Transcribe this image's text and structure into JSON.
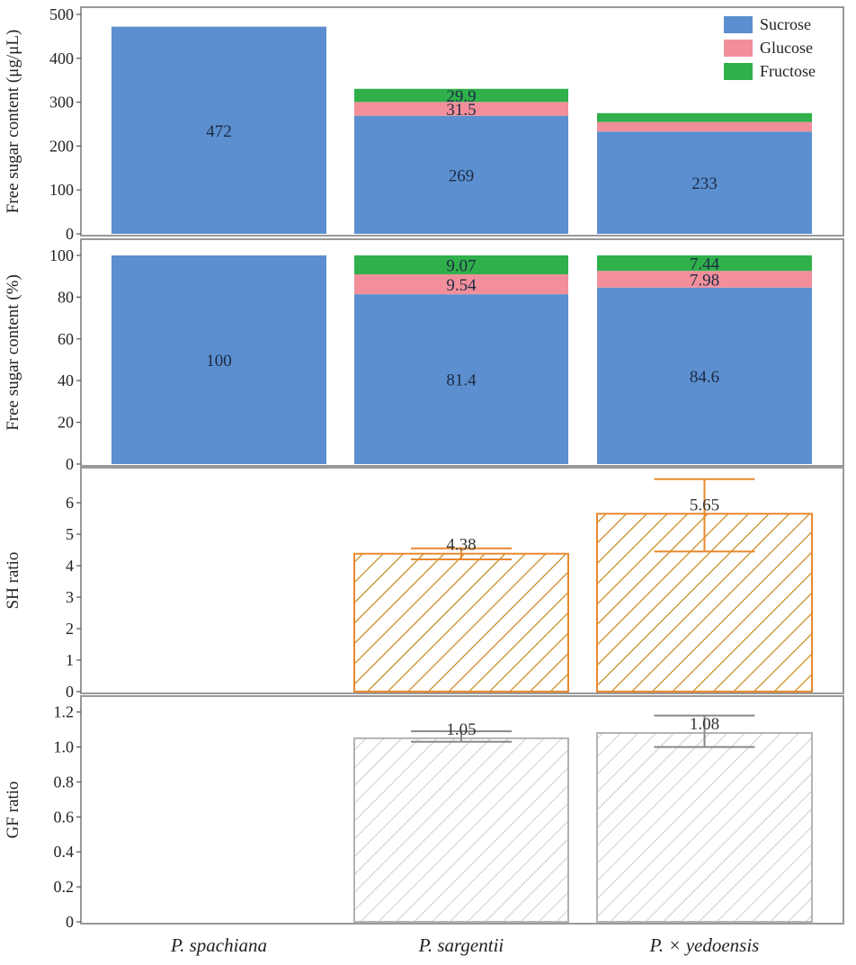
{
  "chart_data": [
    {
      "type": "bar",
      "stacked": true,
      "ylabel": "Free sugar content (μg/μL)",
      "ylim": [
        0,
        500
      ],
      "yticks": [
        0,
        100,
        200,
        300,
        400,
        500
      ],
      "categories": [
        "P. spachiana",
        "P. sargentii",
        "P. × yedoensis"
      ],
      "series": [
        {
          "name": "Sucrose",
          "color": "#5b8fcf",
          "values": [
            472,
            269,
            233
          ],
          "labels": [
            "472",
            "269",
            "233"
          ]
        },
        {
          "name": "Glucose",
          "color": "#f28f9b",
          "values": [
            0,
            31.5,
            22
          ],
          "labels": [
            "",
            "31.5",
            ""
          ]
        },
        {
          "name": "Fructose",
          "color": "#2fb04a",
          "values": [
            0,
            29.9,
            20
          ],
          "labels": [
            "",
            "29.9",
            ""
          ]
        }
      ],
      "legend": {
        "position": "top-right",
        "entries": [
          "Sucrose",
          "Glucose",
          "Fructose"
        ]
      }
    },
    {
      "type": "bar",
      "stacked": true,
      "ylabel": "Free sugar content (%)",
      "ylim": [
        0,
        100
      ],
      "yticks": [
        0,
        20,
        40,
        60,
        80,
        100
      ],
      "categories": [
        "P. spachiana",
        "P. sargentii",
        "P. × yedoensis"
      ],
      "series": [
        {
          "name": "Sucrose",
          "color": "#5b8fcf",
          "values": [
            100,
            81.4,
            84.6
          ],
          "labels": [
            "100",
            "81.4",
            "84.6"
          ]
        },
        {
          "name": "Glucose",
          "color": "#f28f9b",
          "values": [
            0,
            9.54,
            7.98
          ],
          "labels": [
            "",
            "9.54",
            "7.98"
          ]
        },
        {
          "name": "Fructose",
          "color": "#2fb04a",
          "values": [
            0,
            9.07,
            7.44
          ],
          "labels": [
            "",
            "9.07",
            "7.44"
          ]
        }
      ]
    },
    {
      "type": "bar",
      "ylabel": "SH ratio",
      "ylim": [
        0,
        7
      ],
      "yticks": [
        0,
        1,
        2,
        3,
        4,
        5,
        6
      ],
      "categories": [
        "P. spachiana",
        "P. sargentii",
        "P. × yedoensis"
      ],
      "values": [
        null,
        4.38,
        5.65
      ],
      "labels": [
        "",
        "4.38",
        "5.65"
      ],
      "errors": [
        null,
        [
          4.2,
          4.55
        ],
        [
          4.45,
          6.75
        ]
      ],
      "color": "#e8892e",
      "fill": "hatched"
    },
    {
      "type": "bar",
      "ylabel": "GF ratio",
      "ylim": [
        0,
        1.25
      ],
      "yticks": [
        0,
        0.2,
        0.4,
        0.6,
        0.8,
        1.0,
        1.2
      ],
      "ytick_labels": [
        "0",
        "0.2",
        "0.4",
        "0.6",
        "0.8",
        "1.0",
        "1.2"
      ],
      "categories": [
        "P. spachiana",
        "P. sargentii",
        "P. × yedoensis"
      ],
      "values": [
        null,
        1.05,
        1.08
      ],
      "labels": [
        "",
        "1.05",
        "1.08"
      ],
      "errors": [
        null,
        [
          1.03,
          1.09
        ],
        [
          1.0,
          1.18
        ]
      ],
      "color": "#b3b3b3",
      "fill": "hatched"
    }
  ],
  "x_tick_labels": [
    "P. spachiana",
    "P. sargentii",
    "P. × yedoensis"
  ]
}
